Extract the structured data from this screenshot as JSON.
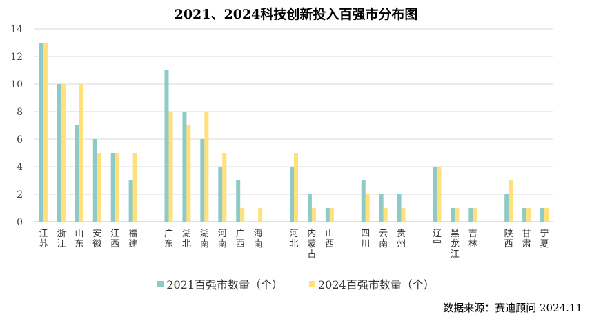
{
  "chart_data": {
    "type": "bar",
    "title": "2021、2024科技创新投入百强市分布图",
    "ylim": [
      0,
      14
    ],
    "yticks": [
      0,
      2,
      4,
      6,
      8,
      10,
      12,
      14
    ],
    "grid": true,
    "legend_position": "bottom",
    "categories": [
      "江苏",
      "浙江",
      "山东",
      "安徽",
      "江西",
      "福建",
      "广东",
      "湖北",
      "湖南",
      "河南",
      "广西",
      "海南",
      "河北",
      "内蒙古",
      "山西",
      "四川",
      "云南",
      "贵州",
      "辽宁",
      "黑龙江",
      "吉林",
      "陕西",
      "甘肃",
      "宁夏"
    ],
    "groups": [
      6,
      6,
      3,
      3,
      3,
      3
    ],
    "series": [
      {
        "name": "2021百强市数量（个）",
        "color": "#8ECAC6",
        "values": [
          13,
          10,
          7,
          6,
          5,
          3,
          11,
          8,
          6,
          4,
          3,
          0,
          4,
          2,
          1,
          3,
          2,
          2,
          4,
          1,
          1,
          2,
          1,
          1
        ]
      },
      {
        "name": "2024百强市数量（个）",
        "color": "#FFE07A",
        "values": [
          13,
          10,
          10,
          5,
          5,
          5,
          8,
          7,
          8,
          5,
          1,
          1,
          5,
          1,
          1,
          2,
          1,
          1,
          4,
          1,
          1,
          3,
          1,
          1
        ]
      }
    ]
  },
  "source": "数据来源：赛迪顾问 2024.11"
}
